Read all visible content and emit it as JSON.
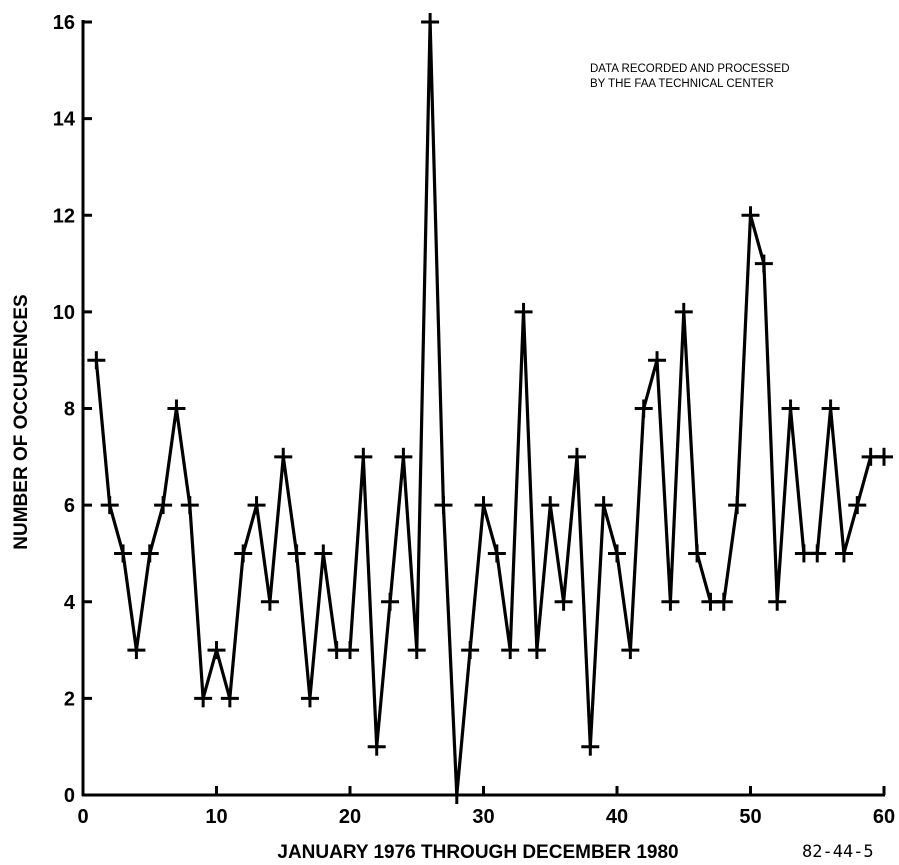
{
  "chart_data": {
    "type": "line",
    "title": "",
    "xlabel": "JANUARY 1976  THROUGH  DECEMBER 1980",
    "ylabel": "NUMBER OF OCCURENCES",
    "xlim": [
      0,
      60
    ],
    "ylim": [
      0,
      16
    ],
    "x_ticks": [
      0,
      10,
      20,
      30,
      40,
      50,
      60
    ],
    "y_ticks": [
      0,
      2,
      4,
      6,
      8,
      10,
      12,
      14,
      16
    ],
    "grid": false,
    "marker": "plus",
    "annotation": [
      "DATA RECORDED AND PROCESSED",
      "BY THE FAA TECHNICAL CENTER"
    ],
    "figure_id": "82-44-5",
    "x": [
      1,
      2,
      3,
      4,
      5,
      6,
      7,
      8,
      9,
      10,
      11,
      12,
      13,
      14,
      15,
      16,
      17,
      18,
      19,
      20,
      21,
      22,
      23,
      24,
      25,
      26,
      27,
      28,
      29,
      30,
      31,
      32,
      33,
      34,
      35,
      36,
      37,
      38,
      39,
      40,
      41,
      42,
      43,
      44,
      45,
      46,
      47,
      48,
      49,
      50,
      51,
      52,
      53,
      54,
      55,
      56,
      57,
      58,
      59,
      60
    ],
    "y": [
      9,
      6,
      5,
      3,
      5,
      6,
      8,
      6,
      2,
      3,
      2,
      5,
      6,
      4,
      7,
      5,
      2,
      5,
      3,
      3,
      7,
      1,
      4,
      7,
      3,
      16,
      6,
      0,
      3,
      6,
      5,
      3,
      10,
      3,
      6,
      4,
      7,
      1,
      6,
      5,
      3,
      8,
      9,
      4,
      10,
      5,
      4,
      4,
      6,
      12,
      11,
      4,
      8,
      5,
      5,
      8,
      5,
      6,
      7,
      7
    ]
  }
}
